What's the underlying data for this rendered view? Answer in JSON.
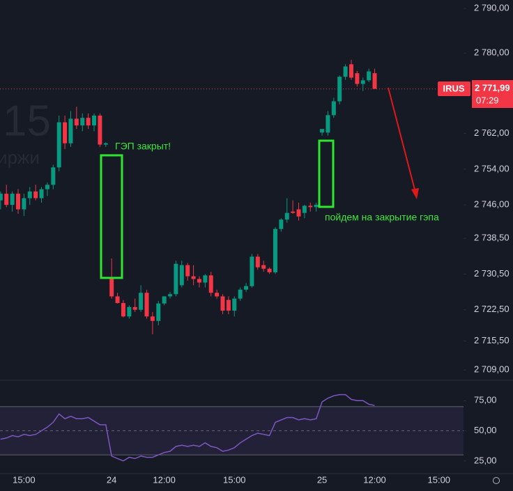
{
  "chart_data": [
    {
      "type": "candlestick",
      "watermark": [
        "15",
        "иржи"
      ],
      "annotations": [
        "ГЭП закрыт!",
        "пойдем на закрытие гэпа"
      ],
      "up_color": "#089981",
      "down_color": "#f23645",
      "open": [
        2747,
        2748.5,
        2746,
        2748.5,
        2745,
        2747.5,
        2749,
        2747.5,
        2749.5,
        2750.5,
        2754.4,
        2764.5,
        2759.8,
        2765.3,
        2763.8,
        2765.5,
        2763.8,
        2766,
        2759.5,
        2729.5,
        2725.5,
        2724,
        2721,
        2723.1,
        2722.5,
        2726.3,
        2721,
        2720,
        2723.9,
        2725.5,
        2726,
        2728,
        2732.5,
        2730,
        2729.4,
        2728.6,
        2730.2,
        2726.3,
        2725.5,
        2724.7,
        2722.3,
        2725,
        2727,
        2727.8,
        2734.4,
        2732.5,
        2731.7,
        2730.9,
        2740.6,
        2742.7,
        2744.5,
        2745,
        2744.2,
        2745.8,
        2745.5,
        2762.2,
        2762.2,
        2766.1,
        2769.2,
        2774.7,
        2777.5,
        2775.5,
        2773.1,
        2773.9,
        2775.5
      ],
      "high": [
        2749,
        2750.5,
        2749,
        2749.5,
        2748.5,
        2750,
        2750.5,
        2750,
        2751,
        2755,
        2766,
        2766,
        2767,
        2768,
        2766.5,
        2766.5,
        2766.5,
        2766.5,
        2760,
        2734,
        2726.3,
        2724.7,
        2723.5,
        2725,
        2728,
        2727,
        2722,
        2724.5,
        2725.5,
        2726.5,
        2733.5,
        2733.5,
        2733,
        2732.5,
        2730,
        2730.5,
        2731,
        2727,
        2726,
        2725.5,
        2725.5,
        2727.5,
        2728.5,
        2735,
        2735,
        2733.5,
        2732,
        2741,
        2743,
        2747.5,
        2747,
        2746.5,
        2746,
        2746.5,
        2746.5,
        2763,
        2767,
        2770,
        2775,
        2777.5,
        2778.5,
        2776,
        2774.5,
        2776.5,
        2776.5
      ],
      "low": [
        2745,
        2745.5,
        2744.5,
        2744,
        2743.5,
        2746,
        2747,
        2746.5,
        2748,
        2749.5,
        2753.5,
        2758.5,
        2759,
        2763,
        2762.5,
        2763,
        2762.5,
        2759,
        2759,
        2725,
        2723.9,
        2720.8,
        2720.5,
        2722,
        2722,
        2720.5,
        2717,
        2719,
        2723.5,
        2725,
        2725.5,
        2727.5,
        2729,
        2728,
        2727.5,
        2727.5,
        2725.5,
        2725,
        2721.5,
        2721.5,
        2721,
        2724.5,
        2726.5,
        2727.5,
        2731.5,
        2731,
        2730.5,
        2730.5,
        2740,
        2742,
        2744,
        2742.5,
        2743,
        2744.5,
        2744.5,
        2761.5,
        2761.5,
        2765.5,
        2768.5,
        2774,
        2774,
        2772.5,
        2771.5,
        2773.5,
        2771.99
      ],
      "close": [
        2748.5,
        2746,
        2748.5,
        2745,
        2747.5,
        2749,
        2747.5,
        2749.5,
        2750.5,
        2754.4,
        2764.5,
        2759.8,
        2765.3,
        2763.8,
        2765.5,
        2763.8,
        2766,
        2759.5,
        2759.8,
        2725.5,
        2724,
        2721,
        2723.1,
        2722.5,
        2726.3,
        2721,
        2720,
        2723.9,
        2725.5,
        2726,
        2732.8,
        2732.5,
        2730,
        2729.4,
        2728.6,
        2730.2,
        2726.3,
        2725.5,
        2722.3,
        2722.3,
        2725,
        2727,
        2727.8,
        2734.4,
        2732,
        2731.7,
        2730.9,
        2740.6,
        2742.7,
        2744.2,
        2744.2,
        2743.4,
        2745.8,
        2745.5,
        2746,
        2763,
        2766.1,
        2769.2,
        2774.7,
        2777,
        2774.5,
        2773.1,
        2773.9,
        2775.9,
        2771.99
      ],
      "xlim": [
        -0.1,
        79.2
      ],
      "xticks": [
        {
          "value": 4,
          "label": "15:00"
        },
        {
          "value": 19,
          "label": "24"
        },
        {
          "value": 28,
          "label": "12:00"
        },
        {
          "value": 40,
          "label": "15:00"
        },
        {
          "value": 55,
          "label": "25"
        },
        {
          "value": 64,
          "label": "12:00"
        },
        {
          "value": 75,
          "label": "15:00"
        }
      ],
      "ylim": [
        2706.7,
        2791.9
      ],
      "yticks": [
        {
          "value": 2790,
          "label": "2 790,00"
        },
        {
          "value": 2780,
          "label": "2 780,00"
        },
        {
          "value": 2762,
          "label": "2 762,00"
        },
        {
          "value": 2754,
          "label": "2 754,00"
        },
        {
          "value": 2746,
          "label": "2 746,00"
        },
        {
          "value": 2738.5,
          "label": "2 738,50"
        },
        {
          "value": 2730.5,
          "label": "2 730,50"
        },
        {
          "value": 2722.5,
          "label": "2 722,50"
        },
        {
          "value": 2715.5,
          "label": "2 715,50"
        },
        {
          "value": 2709,
          "label": "2 709,00"
        }
      ],
      "symbol": "IRUS",
      "last_price": {
        "value": 2771.99,
        "label": "2 771,99"
      },
      "countdown": "07:29"
    },
    {
      "type": "line",
      "color": "#7e57c2",
      "values": [
        43,
        44,
        46,
        45,
        47,
        46,
        47,
        50,
        53,
        57,
        64,
        60,
        62,
        60,
        60,
        61,
        58,
        55,
        55,
        29,
        27,
        25,
        28,
        27,
        29,
        28,
        28,
        30,
        32,
        33,
        37,
        38,
        37,
        38,
        37,
        40,
        37,
        36,
        33,
        34,
        36,
        40,
        43,
        46,
        48,
        47,
        46,
        57,
        59,
        61,
        61,
        59,
        60,
        59,
        60,
        74,
        77,
        79,
        80,
        80,
        76,
        75,
        75,
        72,
        71
      ],
      "band": [
        30,
        70
      ],
      "ylim": [
        14.5,
        91.3
      ],
      "yticks": [
        {
          "value": 75,
          "label": "75,00"
        },
        {
          "value": 50,
          "label": "50,00"
        },
        {
          "value": 25,
          "label": "25,00"
        }
      ]
    }
  ]
}
